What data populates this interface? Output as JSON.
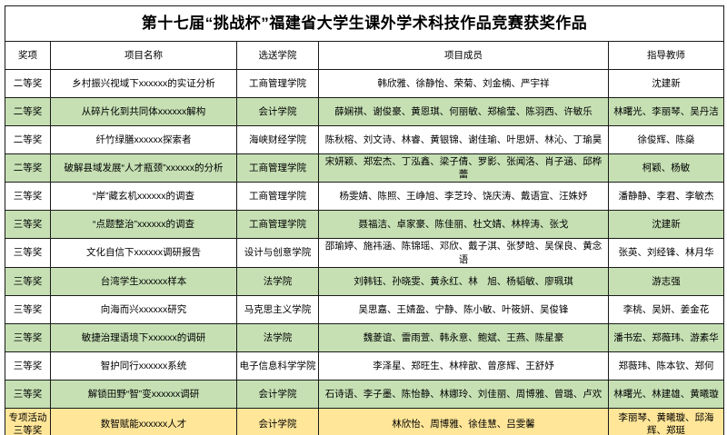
{
  "title": "第十七届“挑战杯”福建省大学生课外学术科技作品竞赛获奖作品",
  "colors": {
    "highlight_green": "#c6e0b4",
    "highlight_yellow": "#ffe699",
    "border": "#1a1a1a",
    "background": "#ffffff"
  },
  "table": {
    "columns": [
      "奖项",
      "项目名称",
      "选送学院",
      "项目成员",
      "指导教师"
    ],
    "rows": [
      {
        "award": "二等奖",
        "project": "乡村振兴视域下xxxxxx的实证分析",
        "college": "工商管理学院",
        "members": "韩欣雅、徐静怡、荣菊、刘金楠、严宇祥",
        "advisors": "沈建新",
        "highlight": "none"
      },
      {
        "award": "二等奖",
        "project": "从碎片化到共同体xxxxxx解构",
        "college": "会计学院",
        "members": "薛娴祺、谢俊豪、黄恩琪、何丽敏、郑榆莹、陈羽西、许敏乐",
        "advisors": "林曙光、李丽琴、吴丹洁",
        "highlight": "green"
      },
      {
        "award": "二等奖",
        "project": "纤竹绿膳xxxxxx探索者",
        "college": "海峡财经学院",
        "members": "陈秋榕、刘文诗、林睿、黄银锦、谢佳瑜、叶思妍、林沁、丁瑜昊",
        "advisors": "徐俊辉、陈燊",
        "highlight": "none"
      },
      {
        "award": "二等奖",
        "project": "破解县域发展“人才瓶颈”xxxxxx的分析",
        "college": "工商管理学院",
        "members": "宋妍颖、郑宏杰、丁泓鑫、梁子倩、罗影、张闻洛、肖子涵、邱桦蕾",
        "advisors": "柯颖、杨敏",
        "highlight": "green"
      },
      {
        "award": "三等奖",
        "project": "“岸”藏玄机xxxxxx的调查",
        "college": "工商管理学院",
        "members": "杨雯婧、陈照、王峥旭、李芝玲、饶庆涛、戴语宣、汪姝妤",
        "advisors": "潘静静、李君、李敏杰",
        "highlight": "none"
      },
      {
        "award": "三等奖",
        "project": "“点题整治”xxxxxx的调查",
        "college": "工商管理学院",
        "members": "聂福洁、卓家豪、陈佳丽、杜文婧、林梓涛、张戈",
        "advisors": "沈建新",
        "highlight": "green"
      },
      {
        "award": "三等奖",
        "project": "文化自信下xxxxxx调研报告",
        "college": "设计与创意学院",
        "members": "邵瑜婷、施祎涵、陈锦瑶、邓欣、戴子淇、张梦晗、吴保良、黄念语",
        "advisors": "张英、刘经锋、林月华",
        "highlight": "none"
      },
      {
        "award": "三等奖",
        "project": "台湾学生xxxxxx样本",
        "college": "法学院",
        "members": "刘韩钰、孙晓雯、黄永红、林　旭、杨韬敏、廖珮琪",
        "advisors": "游志强",
        "highlight": "green"
      },
      {
        "award": "三等奖",
        "project": "向海而兴xxxxxx研究",
        "college": "马克思主义学院",
        "members": "吴思嘉、王婧盈、宁静、陈小敏、叶筱妍、吴俊锋",
        "advisors": "李桃、吴妍、姜金花",
        "highlight": "none"
      },
      {
        "award": "三等奖",
        "project": "敏捷治理语境下xxxxxx的调研",
        "college": "法学院",
        "members": "魏菱谊、雷雨萱、韩永意、鲍斌、王燕、陈星豪",
        "advisors": "潘书宏、郑薇玮、游素华",
        "highlight": "green"
      },
      {
        "award": "三等奖",
        "project": "智护同行xxxxxx系统",
        "college": "电子信息科学学院",
        "members": "李泽星、郑旺生、林梓歆、曾彦辉、王舒妤",
        "advisors": "郑薇玮、陈本钦、郑何",
        "highlight": "none"
      },
      {
        "award": "三等奖",
        "project": "解锁田野“智”变xxxxxx调研",
        "college": "会计学院",
        "members": "石诗语、李子墨、陈怡静、林娜玲、刘佳丽、周博雅、曾璐、卢欢",
        "advisors": "林曙光、林建雄、黄曦璇",
        "highlight": "green"
      },
      {
        "award": "专项活动三等奖",
        "project": "数智赋能xxxxxx人才",
        "college": "会计学院",
        "members": "林欣怡、周博雅、徐佳慧、吕雯馨",
        "advisors": "李丽琴、黄曦璇、邱海辉、郑珽",
        "highlight": "yellow"
      }
    ]
  }
}
